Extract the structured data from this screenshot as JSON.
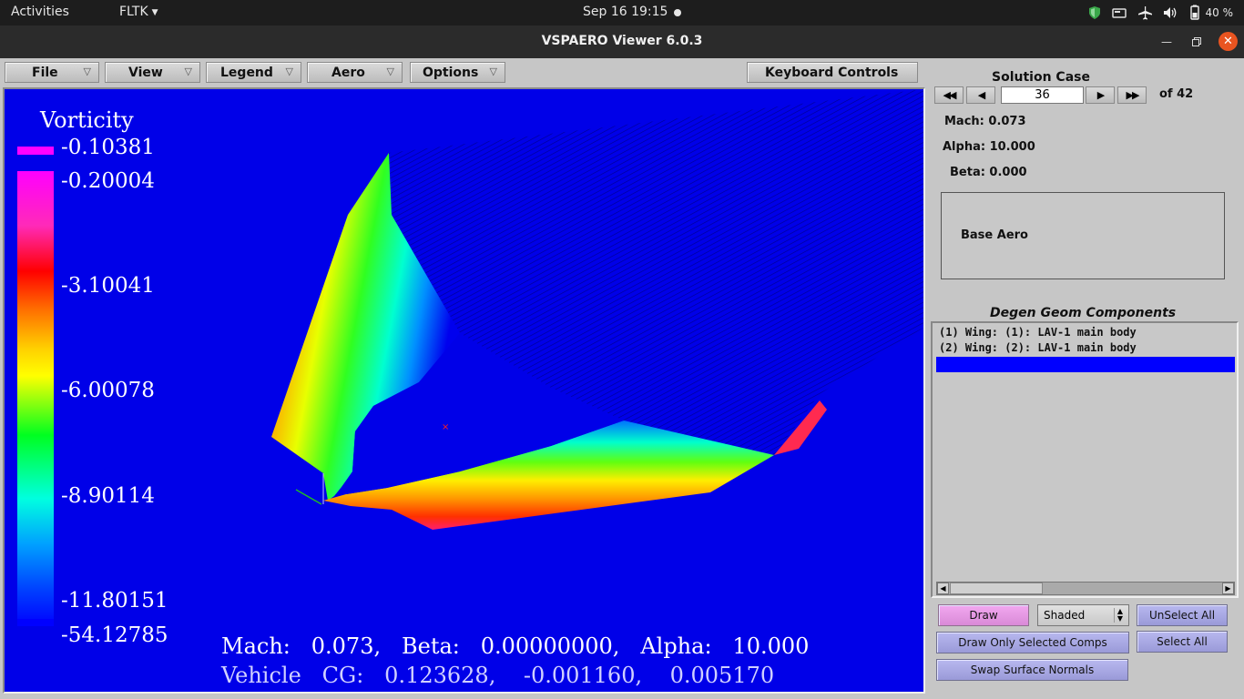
{
  "topbar": {
    "activities": "Activities",
    "app_menu": "FLTK",
    "clock": "Sep 16  19:15",
    "battery_pct": "40 %"
  },
  "window": {
    "title": "VSPAERO Viewer 6.0.3"
  },
  "menubar": {
    "file": "File",
    "view": "View",
    "legend": "Legend",
    "aero": "Aero",
    "options": "Options",
    "keyboard_controls": "Keyboard Controls"
  },
  "legend": {
    "title": "Vorticity",
    "top_value": "-0.10381",
    "labels": [
      "-0.20004",
      "-3.10041",
      "-6.00078",
      "-8.90114",
      "-11.80151"
    ],
    "bottom_value": "-54.12785"
  },
  "overlay": {
    "line1": "Mach:   0.073,   Beta:   0.00000000,   Alpha:   10.000",
    "line2": "Vehicle   CG:   0.123628,    -0.001160,    0.005170"
  },
  "solution": {
    "title": "Solution Case",
    "case": "36",
    "of": "of 42",
    "mach": "Mach: 0.073",
    "alpha": "Alpha: 10.000",
    "beta": "Beta: 0.000",
    "base": "Base Aero"
  },
  "degen": {
    "title": "Degen Geom Components",
    "items": [
      "(1) Wing: (1): LAV-1 main body",
      "(2) Wing: (2): LAV-1 main body"
    ]
  },
  "controls": {
    "draw": "Draw",
    "shade": "Shaded",
    "unselect_all": "UnSelect All",
    "draw_only_selected": "Draw Only Selected Comps",
    "select_all": "Select All",
    "swap_normals": "Swap Surface Normals"
  },
  "colors": {
    "viewport_bg": "#0000e8",
    "selection": "#0000ff",
    "accent_button": "#b0b0ec",
    "draw_button": "#e89ae6"
  }
}
